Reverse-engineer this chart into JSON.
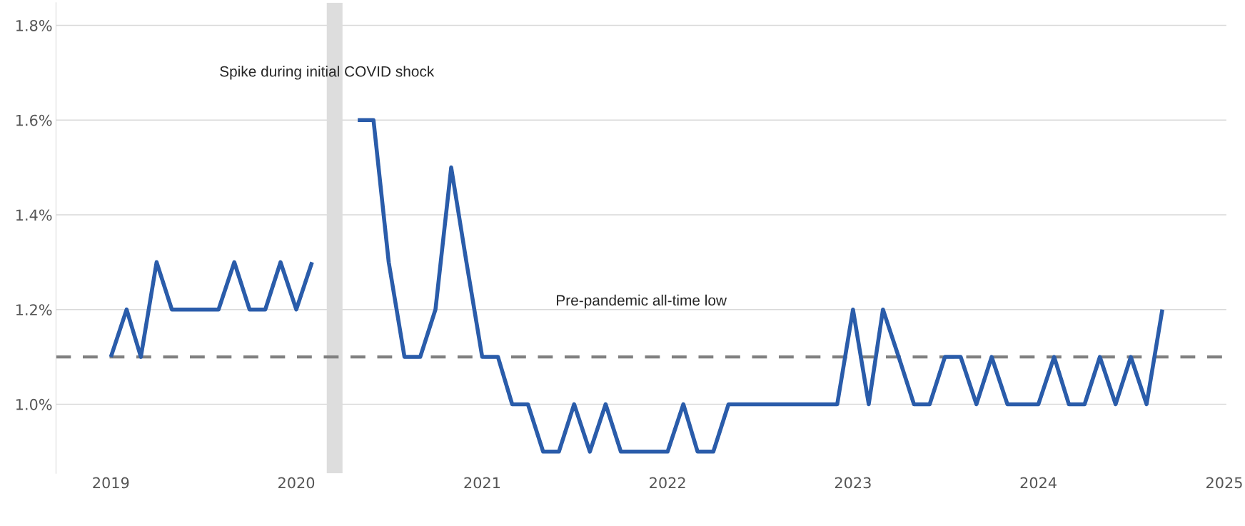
{
  "chart_data": {
    "type": "line",
    "x": [
      "2019-01",
      "2019-02",
      "2019-03",
      "2019-04",
      "2019-05",
      "2019-06",
      "2019-07",
      "2019-08",
      "2019-09",
      "2019-10",
      "2019-11",
      "2019-12",
      "2020-01",
      "2020-02",
      "2020-03",
      "2020-04",
      "2020-05",
      "2020-06",
      "2020-07",
      "2020-08",
      "2020-09",
      "2020-10",
      "2020-11",
      "2020-12",
      "2021-01",
      "2021-02",
      "2021-03",
      "2021-04",
      "2021-05",
      "2021-06",
      "2021-07",
      "2021-08",
      "2021-09",
      "2021-10",
      "2021-11",
      "2021-12",
      "2022-01",
      "2022-02",
      "2022-03",
      "2022-04",
      "2022-05",
      "2022-06",
      "2022-07",
      "2022-08",
      "2022-09",
      "2022-10",
      "2022-11",
      "2022-12",
      "2023-01",
      "2023-02",
      "2023-03",
      "2023-04",
      "2023-05",
      "2023-06",
      "2023-07",
      "2023-08",
      "2023-09",
      "2023-10",
      "2023-11",
      "2023-12",
      "2024-01",
      "2024-02",
      "2024-03",
      "2024-04",
      "2024-05",
      "2024-06",
      "2024-07",
      "2024-08",
      "2024-09"
    ],
    "series": [
      {
        "color": "#2a5caa",
        "values": [
          1.1,
          1.2,
          1.1,
          1.3,
          1.2,
          1.2,
          1.2,
          1.2,
          1.3,
          1.2,
          1.2,
          1.3,
          1.2,
          1.3,
          null,
          null,
          1.6,
          1.6,
          1.3,
          1.1,
          1.1,
          1.2,
          1.5,
          1.3,
          1.1,
          1.1,
          1.0,
          1.0,
          0.9,
          0.9,
          1.0,
          0.9,
          1.0,
          0.9,
          0.9,
          0.9,
          0.9,
          1.0,
          0.9,
          0.9,
          1.0,
          1.0,
          1.0,
          1.0,
          1.0,
          1.0,
          1.0,
          1.0,
          1.2,
          1.0,
          1.2,
          1.1,
          1.0,
          1.0,
          1.1,
          1.1,
          1.0,
          1.1,
          1.0,
          1.0,
          1.0,
          1.1,
          1.0,
          1.0,
          1.1,
          1.0,
          1.1,
          1.0,
          1.2
        ]
      }
    ],
    "xlim": [
      "2018-09-15",
      "2025-01-05"
    ],
    "xticks": [
      {
        "value": "2019-01",
        "label": "2019"
      },
      {
        "value": "2020-01",
        "label": "2020"
      },
      {
        "value": "2021-01",
        "label": "2021"
      },
      {
        "value": "2022-01",
        "label": "2022"
      },
      {
        "value": "2023-01",
        "label": "2023"
      },
      {
        "value": "2024-01",
        "label": "2024"
      },
      {
        "value": "2025-01",
        "label": "2025"
      }
    ],
    "ylim": [
      0.854,
      1.848
    ],
    "yticks": [
      {
        "value": 1.0,
        "label": "1.0%"
      },
      {
        "value": 1.2,
        "label": "1.2%"
      },
      {
        "value": 1.4,
        "label": "1.4%"
      },
      {
        "value": 1.6,
        "label": "1.6%"
      },
      {
        "value": 1.8,
        "label": "1.8%"
      }
    ],
    "grid": "y",
    "line_style": "solid",
    "ref_lines": [
      {
        "axis": "y",
        "value": 1.1,
        "color": "#808080",
        "line_style": "dashed"
      }
    ],
    "bands": [
      {
        "axis": "x",
        "from": "2020-03",
        "to": "2020-04",
        "color": "#dddddd"
      }
    ],
    "annotations": [
      {
        "text": "Spike during initial COVID shock",
        "x": "2020-03",
        "y": 1.7
      },
      "Pre-pandemic all-time low"
    ]
  }
}
